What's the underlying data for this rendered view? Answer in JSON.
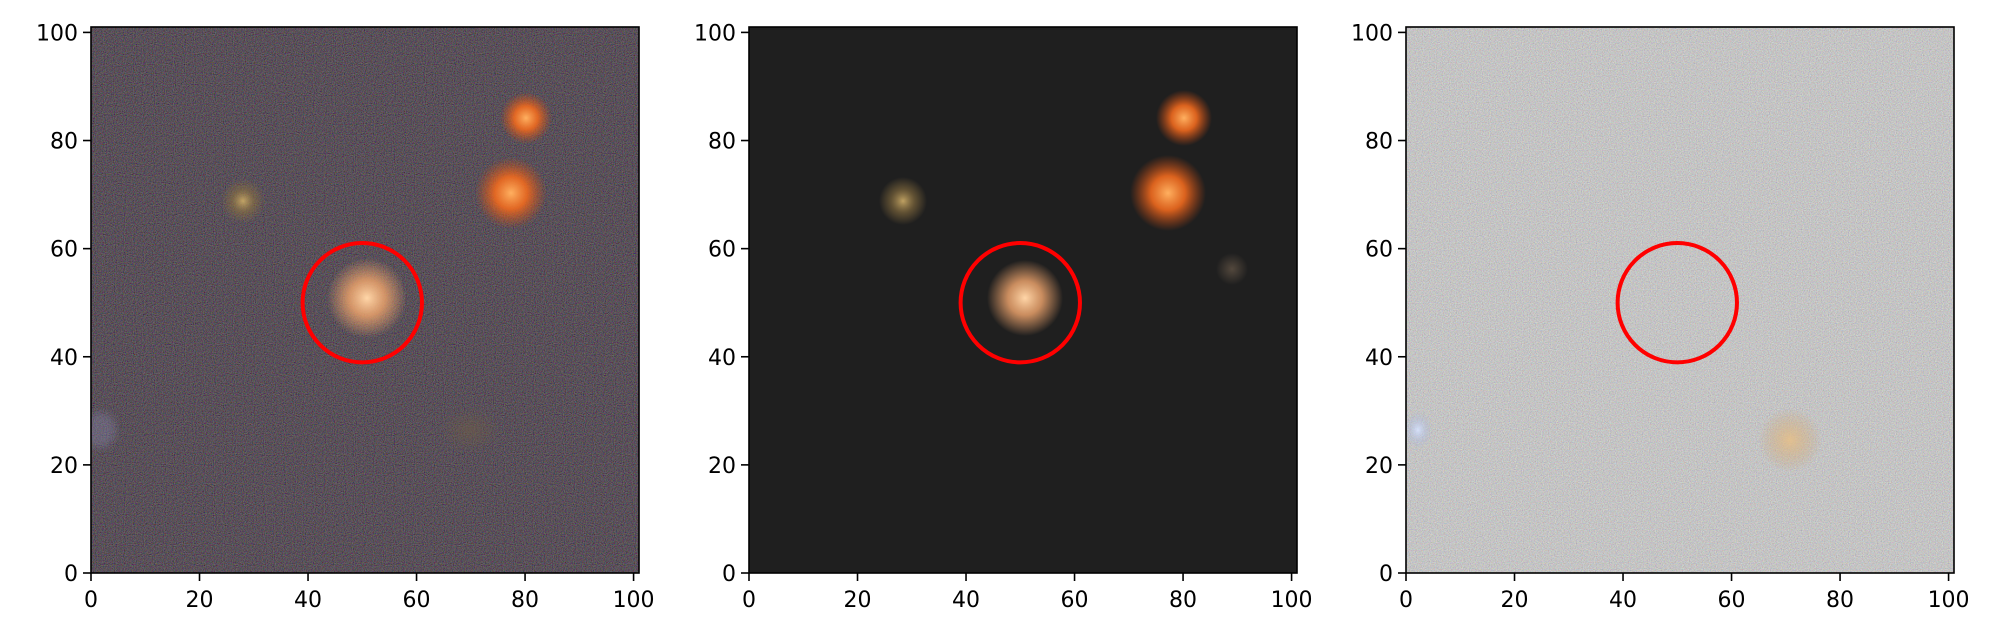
{
  "colors": {
    "marker_circle": "#ff0000",
    "panel_background_data": "#111111",
    "panel_background_model": "#1f1f1f",
    "panel_background_residual": "#8a8585",
    "source_orange": "#ff7a2a",
    "source_peach": "#f4b07c",
    "source_olive": "#a88c4c",
    "axes": "#000000"
  },
  "panels": [
    {
      "id": "data",
      "xlim": [
        0,
        101
      ],
      "ylim": [
        0,
        101
      ],
      "xticks": [
        0,
        20,
        40,
        60,
        80,
        100
      ],
      "yticks": [
        0,
        20,
        40,
        60,
        80,
        100
      ],
      "circle": {
        "x": 50,
        "y": 50,
        "r": 11
      }
    },
    {
      "id": "model",
      "xlim": [
        0,
        101
      ],
      "ylim": [
        0,
        101
      ],
      "xticks": [
        0,
        20,
        40,
        60,
        80,
        100
      ],
      "yticks": [
        0,
        20,
        40,
        60,
        80,
        100
      ],
      "circle": {
        "x": 50,
        "y": 50,
        "r": 11
      }
    },
    {
      "id": "residual",
      "xlim": [
        0,
        101
      ],
      "ylim": [
        0,
        101
      ],
      "xticks": [
        0,
        20,
        40,
        60,
        80,
        100
      ],
      "yticks": [
        0,
        20,
        40,
        60,
        80,
        100
      ],
      "circle": {
        "x": 50,
        "y": 50,
        "r": 11
      }
    }
  ]
}
